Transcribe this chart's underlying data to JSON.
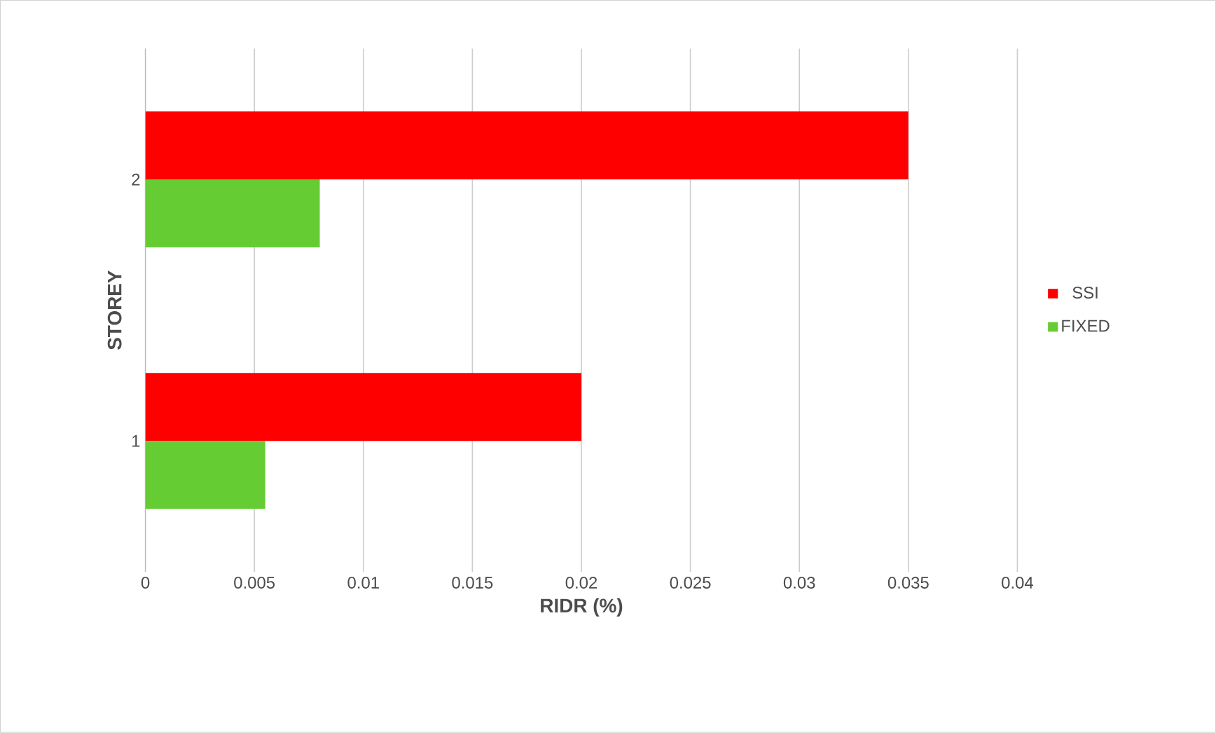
{
  "chart_data": {
    "type": "bar",
    "orientation": "horizontal",
    "xlabel": "RIDR (%)",
    "ylabel": "STOREY",
    "categories": [
      "2",
      "1"
    ],
    "series": [
      {
        "name": "SSI",
        "color": "#ff0000",
        "values": [
          0.035,
          0.02
        ]
      },
      {
        "name": "FIXED",
        "color": "#66cc33",
        "values": [
          0.008,
          0.0055
        ]
      }
    ],
    "xlim": [
      0,
      0.04
    ],
    "xticks": [
      0,
      0.005,
      0.01,
      0.015,
      0.02,
      0.025,
      0.03,
      0.035,
      0.04
    ],
    "grid": "x",
    "legend": "right"
  }
}
